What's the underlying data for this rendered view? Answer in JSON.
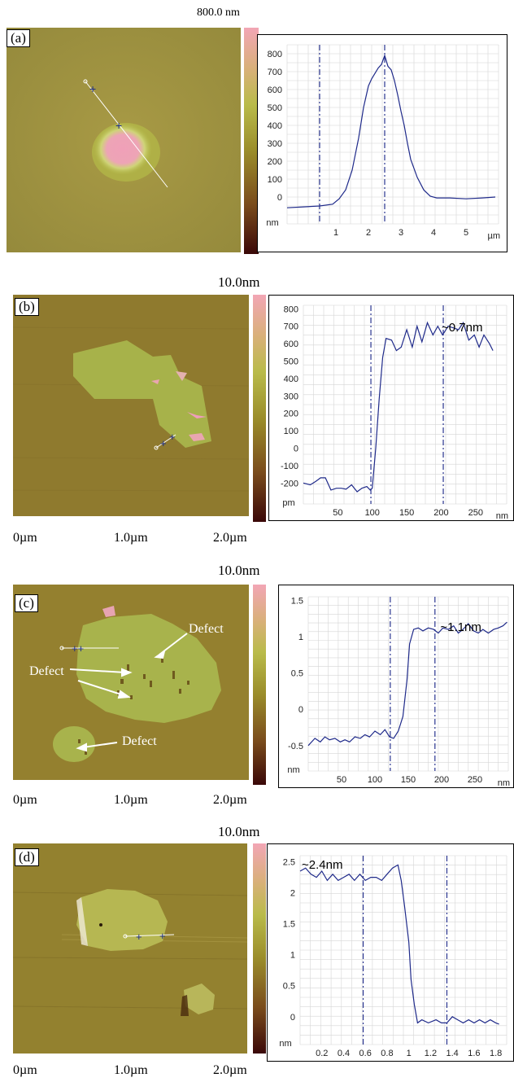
{
  "panels": [
    {
      "tag": "(a)",
      "scale_top": "800.0 nm",
      "x_scale": [],
      "chart_data": {
        "type": "line",
        "xlabel": "µm",
        "ylabel": "nm",
        "xlim": [
          -0.5,
          6.0
        ],
        "ylim": [
          -150,
          850
        ],
        "xticks": [
          1,
          2,
          3,
          4,
          5
        ],
        "yticks": [
          0,
          100,
          200,
          300,
          400,
          500,
          600,
          700,
          800
        ],
        "grid": true,
        "markers_x": [
          0.5,
          2.5
        ],
        "annotation": "",
        "x": [
          -0.5,
          0.0,
          0.5,
          0.9,
          1.1,
          1.3,
          1.5,
          1.7,
          1.85,
          2.0,
          2.1,
          2.2,
          2.3,
          2.4,
          2.5,
          2.55,
          2.6,
          2.7,
          2.8,
          2.9,
          3.0,
          3.1,
          3.2,
          3.3,
          3.5,
          3.7,
          3.9,
          4.1,
          4.5,
          5.0,
          5.5,
          5.9
        ],
        "y": [
          -60,
          -55,
          -50,
          -40,
          -10,
          40,
          150,
          330,
          500,
          620,
          660,
          690,
          720,
          740,
          790,
          760,
          730,
          710,
          650,
          570,
          480,
          400,
          300,
          210,
          110,
          40,
          5,
          -5,
          -5,
          -10,
          -5,
          0
        ]
      }
    },
    {
      "tag": "(b)",
      "scale_top": "10.0nm",
      "x_scale": [
        "0µm",
        "1.0µm",
        "2.0µm"
      ],
      "chart_data": {
        "type": "line",
        "xlabel": "nm",
        "ylabel": "pm",
        "xlim": [
          0,
          295
        ],
        "ylim": [
          -320,
          820
        ],
        "xticks": [
          50,
          100,
          150,
          200,
          250
        ],
        "yticks": [
          -200,
          -100,
          0,
          100,
          200,
          300,
          400,
          500,
          600,
          700,
          800
        ],
        "grid": true,
        "markers_x": [
          98,
          203
        ],
        "annotation": "~0.7nm",
        "x": [
          0,
          10,
          18,
          25,
          32,
          40,
          48,
          55,
          62,
          70,
          78,
          85,
          92,
          97,
          100,
          105,
          110,
          115,
          120,
          128,
          135,
          142,
          150,
          158,
          165,
          172,
          180,
          188,
          195,
          202,
          210,
          218,
          225,
          232,
          240,
          248,
          255,
          262,
          270,
          275
        ],
        "y": [
          -200,
          -210,
          -190,
          -170,
          -170,
          -240,
          -230,
          -230,
          -235,
          -210,
          -250,
          -230,
          -220,
          -240,
          -230,
          0,
          280,
          520,
          630,
          620,
          560,
          580,
          680,
          580,
          700,
          610,
          720,
          650,
          700,
          650,
          700,
          690,
          680,
          720,
          620,
          650,
          580,
          650,
          600,
          560
        ]
      }
    },
    {
      "tag": "(c)",
      "scale_top": "10.0nm",
      "x_scale": [
        "0µm",
        "1.0µm",
        "2.0µm"
      ],
      "annotations": [
        "Defect",
        "Defect",
        "Defect"
      ],
      "chart_data": {
        "type": "line",
        "xlabel": "nm",
        "ylabel": "nm",
        "xlim": [
          0,
          300
        ],
        "ylim": [
          -0.85,
          1.55
        ],
        "xticks": [
          50,
          100,
          150,
          200,
          250
        ],
        "yticks": [
          -0.5,
          0,
          0.5,
          1,
          1.5
        ],
        "grid": true,
        "markers_x": [
          123,
          190
        ],
        "annotation": "~1.1nm",
        "x": [
          0,
          10,
          18,
          25,
          32,
          40,
          48,
          55,
          62,
          70,
          78,
          85,
          92,
          100,
          108,
          115,
          122,
          128,
          135,
          142,
          148,
          152,
          158,
          165,
          172,
          180,
          188,
          195,
          202,
          210,
          218,
          225,
          232,
          240,
          248,
          255,
          262,
          270,
          278,
          285,
          292,
          298
        ],
        "y": [
          -0.5,
          -0.4,
          -0.45,
          -0.38,
          -0.42,
          -0.4,
          -0.45,
          -0.42,
          -0.45,
          -0.38,
          -0.4,
          -0.35,
          -0.38,
          -0.3,
          -0.35,
          -0.28,
          -0.38,
          -0.4,
          -0.3,
          -0.1,
          0.4,
          0.9,
          1.1,
          1.12,
          1.08,
          1.12,
          1.1,
          1.05,
          1.12,
          1.1,
          1.15,
          1.05,
          1.1,
          1.18,
          1.08,
          1.05,
          1.1,
          1.05,
          1.1,
          1.12,
          1.15,
          1.2
        ]
      }
    },
    {
      "tag": "(d)",
      "scale_top": "10.0nm",
      "x_scale": [
        "0µm",
        "1.0µm",
        "2.0µm"
      ],
      "chart_data": {
        "type": "line",
        "xlabel": "",
        "ylabel": "nm",
        "xlim": [
          0,
          1.9
        ],
        "ylim": [
          -0.45,
          2.6
        ],
        "xticks": [
          0.2,
          0.4,
          0.6,
          0.8,
          1,
          1.2,
          1.4,
          1.6,
          1.8
        ],
        "yticks": [
          0,
          0.5,
          1,
          1.5,
          2,
          2.5
        ],
        "grid": true,
        "markers_x": [
          0.58,
          1.35
        ],
        "annotation": "~2.4nm",
        "x": [
          0,
          0.05,
          0.1,
          0.15,
          0.2,
          0.25,
          0.3,
          0.35,
          0.4,
          0.45,
          0.5,
          0.55,
          0.6,
          0.65,
          0.7,
          0.75,
          0.8,
          0.85,
          0.9,
          0.93,
          0.96,
          1.0,
          1.02,
          1.05,
          1.08,
          1.12,
          1.18,
          1.25,
          1.3,
          1.35,
          1.4,
          1.45,
          1.5,
          1.55,
          1.6,
          1.65,
          1.7,
          1.75,
          1.8,
          1.83
        ],
        "y": [
          2.35,
          2.4,
          2.3,
          2.25,
          2.35,
          2.2,
          2.3,
          2.2,
          2.25,
          2.3,
          2.2,
          2.3,
          2.2,
          2.25,
          2.25,
          2.2,
          2.3,
          2.4,
          2.45,
          2.2,
          1.8,
          1.2,
          0.6,
          0.2,
          -0.1,
          -0.05,
          -0.1,
          -0.05,
          -0.1,
          -0.1,
          0.0,
          -0.05,
          -0.1,
          -0.05,
          -0.1,
          -0.05,
          -0.1,
          -0.05,
          -0.1,
          -0.12
        ]
      }
    }
  ],
  "colors": {
    "line": "#1f2a8a",
    "grid": "#d6d6d6",
    "marker": "#2a3590"
  }
}
